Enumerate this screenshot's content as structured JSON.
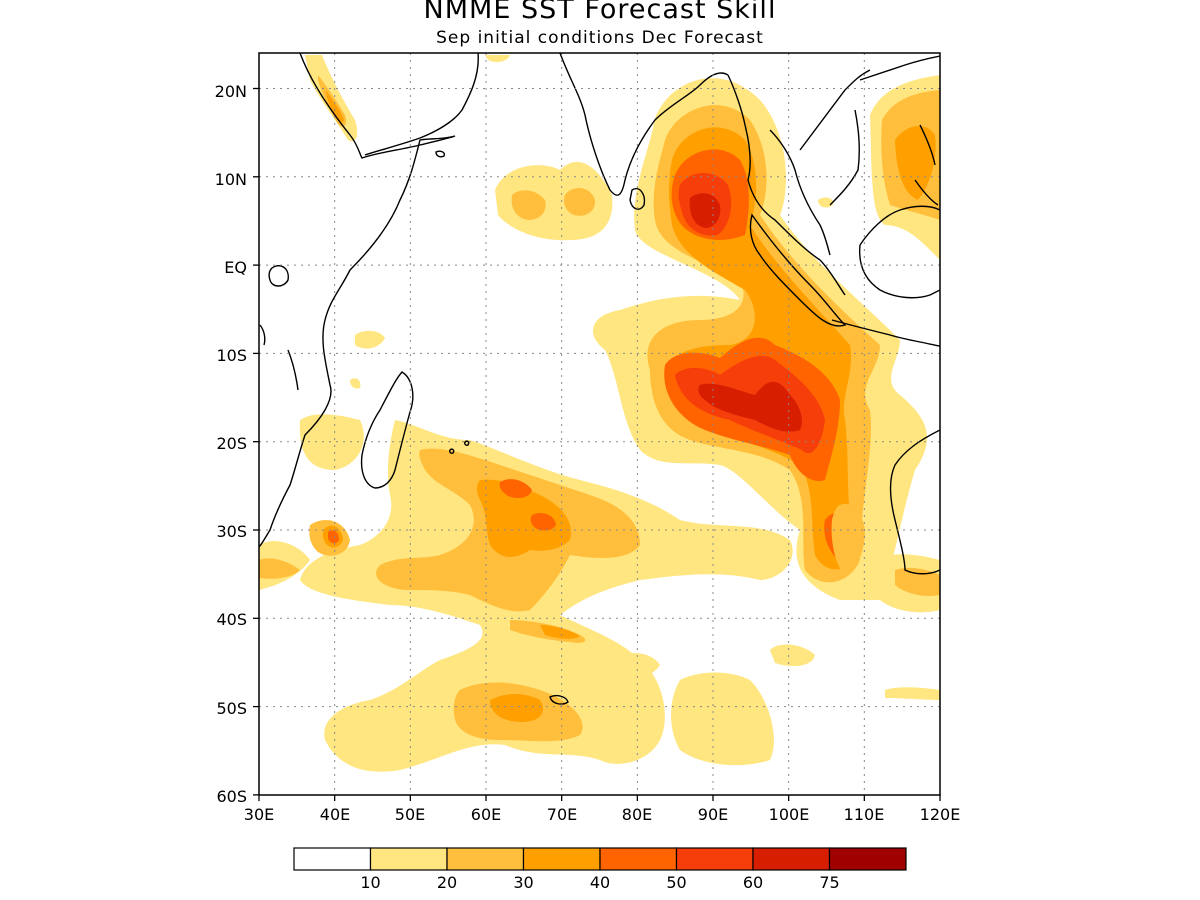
{
  "title": "NMME SST Forecast Skill",
  "subtitle": "Sep initial conditions  Dec Forecast",
  "lat_labels": [
    "20N",
    "10N",
    "EQ",
    "10S",
    "20S",
    "30S",
    "40S",
    "50S",
    "60S"
  ],
  "lon_labels": [
    "30E",
    "40E",
    "50E",
    "60E",
    "70E",
    "80E",
    "90E",
    "100E",
    "110E",
    "120E"
  ],
  "colorbar": {
    "colors": [
      "#ffffff",
      "#ffe680",
      "#ffbf3c",
      "#ffa000",
      "#ff6400",
      "#f53e0a",
      "#d71e00",
      "#a00000"
    ],
    "labels": [
      "10",
      "20",
      "30",
      "40",
      "50",
      "60",
      "75"
    ]
  },
  "palette": {
    "c10": "#ffe680",
    "c20": "#ffbf3c",
    "c30": "#ffa000",
    "c40": "#ff6400",
    "c50": "#f53e0a",
    "c60": "#d71e00"
  }
}
